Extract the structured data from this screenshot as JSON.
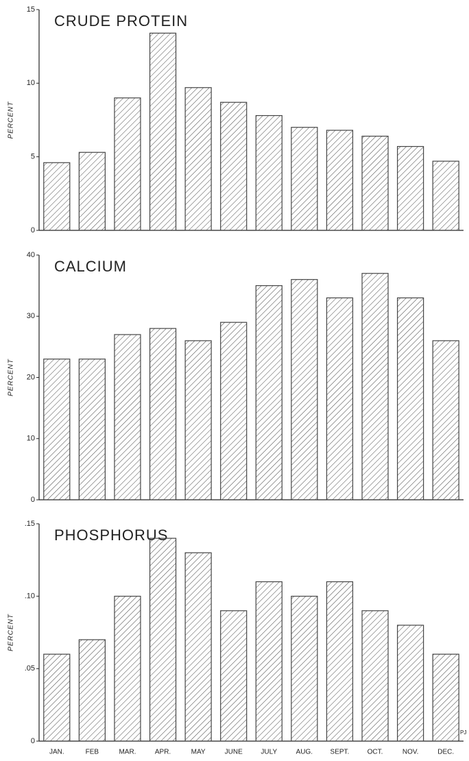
{
  "chart_data": [
    {
      "type": "bar",
      "title": "CRUDE PROTEIN",
      "y_label": "PERCENT",
      "color": "#444",
      "values": [
        4.6,
        5.3,
        9.0,
        13.4,
        9.7,
        8.7,
        7.8,
        7.0,
        6.8,
        6.4,
        5.7,
        4.7
      ],
      "ylim": [
        0,
        15
      ],
      "yticks": [
        0,
        5,
        10,
        15
      ],
      "grid": false
    },
    {
      "type": "bar",
      "title": "CALCIUM",
      "y_label": "PERCENT",
      "color": "#444",
      "values": [
        23,
        23,
        27,
        28,
        26,
        29,
        35,
        36,
        33,
        37,
        33,
        26
      ],
      "ylim": [
        0,
        40
      ],
      "yticks": [
        0,
        10,
        20,
        30,
        40
      ],
      "grid": false
    },
    {
      "type": "bar",
      "title": "PHOSPHORUS",
      "y_label": "PERCENT",
      "color": "#444",
      "categories": [
        "JAN.",
        "FEB",
        "MAR.",
        "APR.",
        "MAY",
        "JUNE",
        "JULY",
        "AUG.",
        "SEPT.",
        "OCT.",
        "NOV.",
        "DEC."
      ],
      "values": [
        0.06,
        0.07,
        0.1,
        0.14,
        0.13,
        0.09,
        0.11,
        0.1,
        0.11,
        0.09,
        0.08,
        0.06
      ],
      "ylim": [
        0,
        0.15
      ],
      "yticks": [
        0,
        {
          "value": 0.05,
          "label": ".05"
        },
        {
          "value": 0.1,
          "label": ".10"
        },
        {
          "value": 0.15,
          "label": ".15"
        }
      ],
      "annotation": "PJ",
      "grid": false
    }
  ]
}
